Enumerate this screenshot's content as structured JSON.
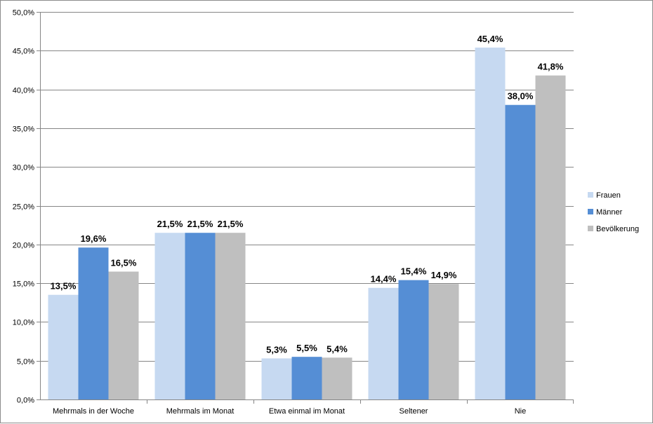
{
  "chart_data": {
    "type": "bar",
    "title": "",
    "xlabel": "",
    "ylabel": "",
    "ylim": [
      0,
      50
    ],
    "ytick_step": 5,
    "ytick_labels": [
      "0,0%",
      "5,0%",
      "10,0%",
      "15,0%",
      "20,0%",
      "25,0%",
      "30,0%",
      "35,0%",
      "40,0%",
      "45,0%",
      "50,0%"
    ],
    "grid": true,
    "legend_position": "right",
    "categories": [
      "Mehrmals in der Woche",
      "Mehrmals im Monat",
      "Etwa einmal im Monat",
      "Seltener",
      "Nie"
    ],
    "series": [
      {
        "name": "Frauen",
        "color": "#c6d9f1",
        "values": [
          13.5,
          21.5,
          5.3,
          14.4,
          45.4
        ],
        "labels": [
          "13,5%",
          "21,5%",
          "5,3%",
          "14,4%",
          "45,4%"
        ]
      },
      {
        "name": "Männer",
        "color": "#558ed5",
        "values": [
          19.6,
          21.5,
          5.5,
          15.4,
          38.0
        ],
        "labels": [
          "19,6%",
          "21,5%",
          "5,5%",
          "15,4%",
          "38,0%"
        ]
      },
      {
        "name": "Bevölkerung",
        "color": "#bfbfbf",
        "values": [
          16.5,
          21.5,
          5.4,
          14.9,
          41.8
        ],
        "labels": [
          "16,5%",
          "21,5%",
          "5,4%",
          "14,9%",
          "41,8%"
        ]
      }
    ]
  }
}
